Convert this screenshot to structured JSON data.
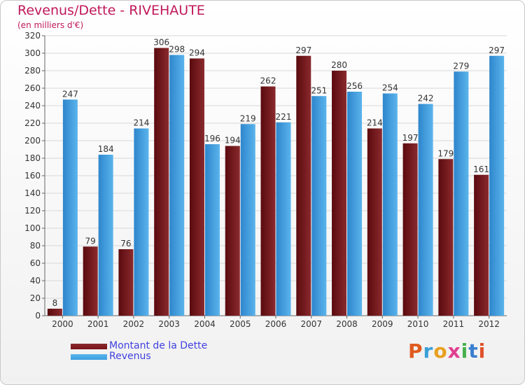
{
  "title": "Revenus/Dette - RIVEHAUTE",
  "subtitle": "(en milliers d'€)",
  "brand": {
    "text": "Proxiti",
    "letter_colors": [
      "#e05a1e",
      "#3aa0d8",
      "#e8a020",
      "#e04090",
      "#46b04a",
      "#3a7fd0",
      "#e0502a"
    ]
  },
  "colors": {
    "dette": "#7a1216",
    "revenus": "#3c9ee0",
    "gridline": "#d8d8d8",
    "axis_text": "#333333"
  },
  "chart_data": {
    "type": "bar",
    "title": "Revenus/Dette - RIVEHAUTE",
    "subtitle": "(en milliers d'€)",
    "categories": [
      "2000",
      "2001",
      "2002",
      "2003",
      "2004",
      "2005",
      "2006",
      "2007",
      "2008",
      "2009",
      "2010",
      "2011",
      "2012"
    ],
    "series": [
      {
        "name": "Montant de la Dette",
        "values": [
          8,
          79,
          76,
          306,
          294,
          194,
          262,
          297,
          280,
          214,
          197,
          179,
          161
        ]
      },
      {
        "name": "Revenus",
        "values": [
          247,
          184,
          214,
          298,
          196,
          219,
          221,
          251,
          256,
          254,
          242,
          279,
          297
        ]
      }
    ],
    "ylim": [
      0,
      320
    ],
    "yticks": [
      0,
      20,
      40,
      60,
      80,
      100,
      120,
      140,
      160,
      180,
      200,
      220,
      240,
      260,
      280,
      300,
      320
    ],
    "grid": true,
    "legend_position": "bottom-left"
  }
}
